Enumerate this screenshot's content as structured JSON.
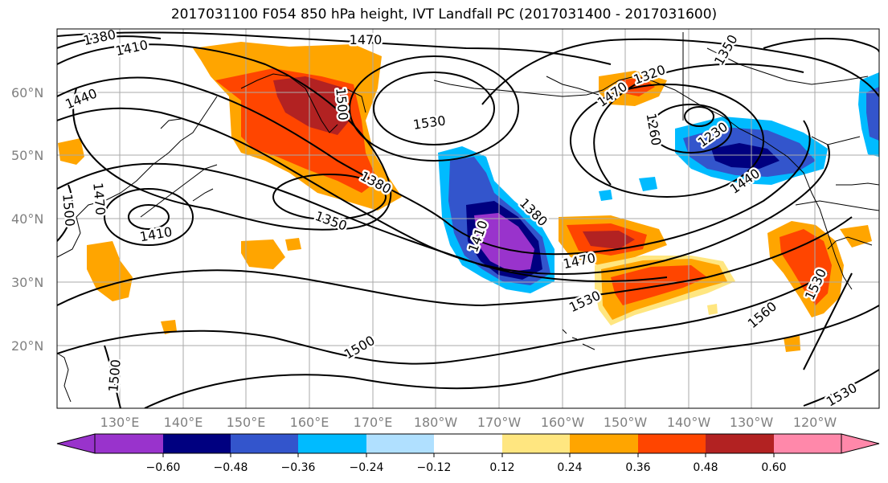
{
  "title": "2017031100 F054 850 hPa height, IVT Landfall PC (2017031400 - 2017031600)",
  "map": {
    "lat_labels": [
      "60°N",
      "50°N",
      "40°N",
      "30°N",
      "20°N"
    ],
    "lon_labels": [
      "130°E",
      "140°E",
      "150°E",
      "160°E",
      "170°E",
      "180°W",
      "170°W",
      "160°W",
      "150°W",
      "140°W",
      "130°W",
      "120°W"
    ],
    "contour_labels": [
      "1380",
      "1410",
      "1440",
      "1470",
      "1500",
      "1530",
      "1350",
      "1380",
      "1410",
      "1470",
      "1500",
      "1530",
      "1560",
      "1530",
      "1500",
      "1470",
      "1410",
      "1380",
      "1260",
      "1320",
      "1230",
      "1440",
      "1350",
      "1500",
      "1470",
      "1530"
    ],
    "colors": {
      "purple": "#9933cc",
      "navy": "#000080",
      "blue": "#3355cc",
      "sky": "#00bbff",
      "lightblue": "#b0e0ff",
      "yellow": "#ffe680",
      "orange": "#ffa500",
      "redorange": "#ff4500",
      "darkred": "#b22222",
      "pink": "#ff88aa"
    }
  },
  "colorbar": {
    "ticks": [
      "−0.60",
      "−0.48",
      "−0.36",
      "−0.24",
      "−0.12",
      "0.12",
      "0.24",
      "0.36",
      "0.48",
      "0.60"
    ],
    "colors": [
      "#9933cc",
      "#000080",
      "#3355cc",
      "#00bbff",
      "#b0e0ff",
      "#ffffff",
      "#ffe680",
      "#ffa500",
      "#ff4500",
      "#b22222",
      "#ff88aa"
    ]
  }
}
